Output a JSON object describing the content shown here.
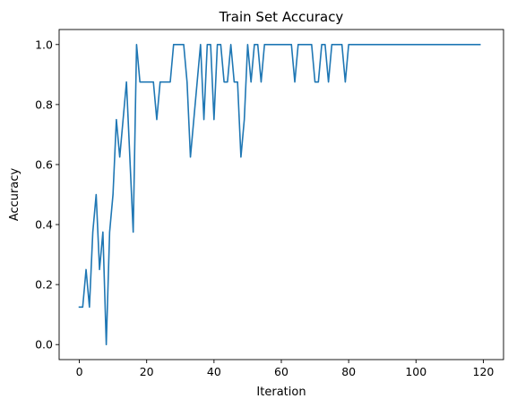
{
  "chart_data": {
    "type": "line",
    "title": "Train Set Accuracy",
    "xlabel": "Iteration",
    "ylabel": "Accuracy",
    "xlim": [
      -6,
      126
    ],
    "ylim": [
      -0.05,
      1.05
    ],
    "x_ticks": [
      0,
      20,
      40,
      60,
      80,
      100,
      120
    ],
    "y_ticks": [
      0.0,
      0.2,
      0.4,
      0.6,
      0.8,
      1.0
    ],
    "x_tick_labels": [
      "0",
      "20",
      "40",
      "60",
      "80",
      "100",
      "120"
    ],
    "y_tick_labels": [
      "0.0",
      "0.2",
      "0.4",
      "0.6",
      "0.8",
      "1.0"
    ],
    "grid": false,
    "legend": "none",
    "series": [
      {
        "color": "#1f77b4",
        "x": [
          0,
          1,
          2,
          3,
          4,
          5,
          6,
          7,
          8,
          9,
          10,
          11,
          12,
          13,
          14,
          15,
          16,
          17,
          18,
          19,
          20,
          21,
          22,
          23,
          24,
          25,
          26,
          27,
          28,
          29,
          30,
          31,
          32,
          33,
          34,
          35,
          36,
          37,
          38,
          39,
          40,
          41,
          42,
          43,
          44,
          45,
          46,
          47,
          48,
          49,
          50,
          51,
          52,
          53,
          54,
          55,
          56,
          57,
          58,
          59,
          60,
          61,
          62,
          63,
          64,
          65,
          66,
          67,
          68,
          69,
          70,
          71,
          72,
          73,
          74,
          75,
          76,
          77,
          78,
          79,
          80,
          81,
          82,
          83,
          84,
          85,
          86,
          87,
          88,
          89,
          90,
          91,
          92,
          93,
          94,
          95,
          96,
          97,
          98,
          99,
          100,
          101,
          102,
          103,
          104,
          105,
          106,
          107,
          108,
          109,
          110,
          111,
          112,
          113,
          114,
          115,
          116,
          117,
          118,
          119
        ],
        "values": [
          0.125,
          0.125,
          0.25,
          0.125,
          0.375,
          0.5,
          0.25,
          0.375,
          0.0,
          0.375,
          0.5,
          0.75,
          0.625,
          0.75,
          0.875,
          0.625,
          0.375,
          1.0,
          0.875,
          0.875,
          0.875,
          0.875,
          0.875,
          0.75,
          0.875,
          0.875,
          0.875,
          0.875,
          1.0,
          1.0,
          1.0,
          1.0,
          0.875,
          0.625,
          0.75,
          0.875,
          1.0,
          0.75,
          1.0,
          1.0,
          0.75,
          1.0,
          1.0,
          0.875,
          0.875,
          1.0,
          0.875,
          0.875,
          0.625,
          0.75,
          1.0,
          0.875,
          1.0,
          1.0,
          0.875,
          1.0,
          1.0,
          1.0,
          1.0,
          1.0,
          1.0,
          1.0,
          1.0,
          1.0,
          0.875,
          1.0,
          1.0,
          1.0,
          1.0,
          1.0,
          0.875,
          0.875,
          1.0,
          1.0,
          0.875,
          1.0,
          1.0,
          1.0,
          1.0,
          0.875,
          1.0,
          1.0,
          1.0,
          1.0,
          1.0,
          1.0,
          1.0,
          1.0,
          1.0,
          1.0,
          1.0,
          1.0,
          1.0,
          1.0,
          1.0,
          1.0,
          1.0,
          1.0,
          1.0,
          1.0,
          1.0,
          1.0,
          1.0,
          1.0,
          1.0,
          1.0,
          1.0,
          1.0,
          1.0,
          1.0,
          1.0,
          1.0,
          1.0,
          1.0,
          1.0,
          1.0,
          1.0,
          1.0,
          1.0,
          1.0
        ]
      }
    ]
  }
}
